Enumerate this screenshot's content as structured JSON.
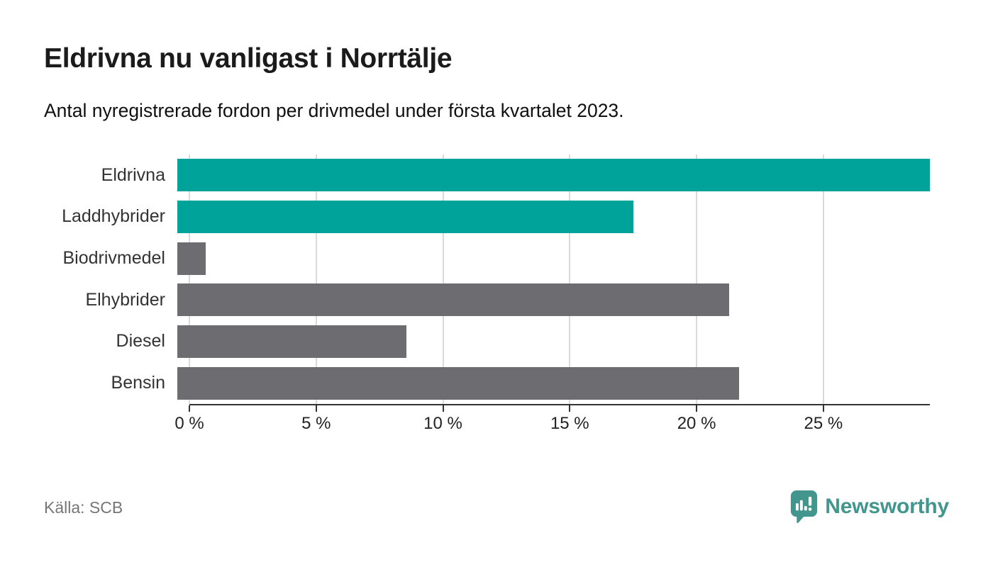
{
  "chart_data": {
    "type": "bar",
    "orientation": "horizontal",
    "title": "Eldrivna nu vanligast i Norrtälje",
    "subtitle": "Antal nyregistrerade fordon per drivmedel under första kvartalet 2023.",
    "categories": [
      "Eldrivna",
      "Laddhybrider",
      "Biodrivmedel",
      "Elhybrider",
      "Diesel",
      "Bensin"
    ],
    "values": [
      29.2,
      17.7,
      1.1,
      21.4,
      8.9,
      21.8
    ],
    "unit": "%",
    "bar_colors": [
      "#00a39a",
      "#00a39a",
      "#6d6c71",
      "#6d6c71",
      "#6d6c71",
      "#6d6c71"
    ],
    "xlim": [
      0,
      29.2
    ],
    "x_ticks": [
      {
        "value": 0,
        "label": "0 %"
      },
      {
        "value": 5,
        "label": "5 %"
      },
      {
        "value": 10,
        "label": "10 %"
      },
      {
        "value": 15,
        "label": "15 %"
      },
      {
        "value": 20,
        "label": "20 %"
      },
      {
        "value": 25,
        "label": "25 %"
      }
    ],
    "grid": "vertical",
    "legend": "none",
    "xlabel": "",
    "ylabel": ""
  },
  "footer": {
    "source": "Källa: SCB",
    "brand": {
      "name": "Newsworthy"
    }
  },
  "colors": {
    "highlight_bar": "#00a39a",
    "default_bar": "#6d6c71",
    "gridline": "#dadada",
    "axis": "#333333",
    "title_text": "#1b1b1b",
    "subtitle_text": "#101010",
    "category_label": "#333333",
    "tick_label": "#222222",
    "source_text": "#767676",
    "brand_teal": "#42968e",
    "background": "#ffffff"
  },
  "icons": {
    "brand_logo": "newsworthy-speech-bubble-bar-chart-icon"
  }
}
